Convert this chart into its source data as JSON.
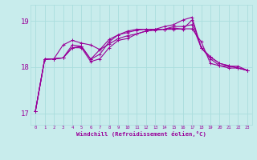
{
  "xlabel": "Windchill (Refroidissement éolien,°C)",
  "background_color": "#c8ecec",
  "line_color": "#990099",
  "grid_color": "#aadddd",
  "xlim": [
    -0.5,
    23.5
  ],
  "ylim": [
    16.75,
    19.35
  ],
  "yticks": [
    17,
    18,
    19
  ],
  "xticks": [
    0,
    1,
    2,
    3,
    4,
    5,
    6,
    7,
    8,
    9,
    10,
    11,
    12,
    13,
    14,
    15,
    16,
    17,
    18,
    19,
    20,
    21,
    22,
    23
  ],
  "curve1_x": [
    0,
    1,
    2,
    3,
    4,
    5,
    6,
    7,
    8,
    9,
    10,
    11,
    12,
    13,
    14,
    15,
    16,
    17,
    18,
    19,
    20,
    21,
    22,
    23
  ],
  "curve1_y": [
    17.05,
    18.17,
    18.18,
    18.2,
    18.48,
    18.45,
    18.17,
    18.38,
    18.6,
    18.7,
    18.75,
    18.8,
    18.82,
    18.82,
    18.82,
    18.82,
    18.83,
    18.83,
    18.55,
    18.08,
    18.03,
    18.02,
    18.02,
    17.93
  ],
  "curve2_x": [
    0,
    1,
    2,
    3,
    4,
    5,
    6,
    7,
    8,
    9,
    10,
    11,
    12,
    13,
    14,
    15,
    16,
    17,
    18,
    19,
    20,
    21,
    22,
    23
  ],
  "curve2_y": [
    17.05,
    18.17,
    18.18,
    18.48,
    18.58,
    18.52,
    18.48,
    18.38,
    18.5,
    18.62,
    18.68,
    18.72,
    18.78,
    18.8,
    18.82,
    18.85,
    18.82,
    19.02,
    18.42,
    18.22,
    18.08,
    18.03,
    17.98,
    17.93
  ],
  "curve3_x": [
    0,
    1,
    2,
    3,
    4,
    5,
    6,
    7,
    8,
    9,
    10,
    11,
    12,
    13,
    14,
    15,
    16,
    17,
    18,
    19,
    20,
    21,
    22,
    23
  ],
  "curve3_y": [
    17.05,
    18.17,
    18.18,
    18.2,
    18.42,
    18.45,
    18.17,
    18.28,
    18.55,
    18.7,
    18.78,
    18.82,
    18.82,
    18.82,
    18.88,
    18.92,
    19.02,
    19.08,
    18.42,
    18.22,
    18.08,
    18.03,
    17.98,
    17.93
  ],
  "curve4_x": [
    0,
    1,
    2,
    3,
    4,
    5,
    6,
    7,
    8,
    9,
    10,
    11,
    12,
    13,
    14,
    15,
    16,
    17,
    18,
    19,
    20,
    21,
    22,
    23
  ],
  "curve4_y": [
    17.05,
    18.17,
    18.18,
    18.2,
    18.42,
    18.42,
    18.12,
    18.18,
    18.42,
    18.58,
    18.62,
    18.72,
    18.78,
    18.82,
    18.82,
    18.88,
    18.88,
    18.92,
    18.42,
    18.18,
    18.03,
    17.98,
    17.98,
    17.93
  ]
}
